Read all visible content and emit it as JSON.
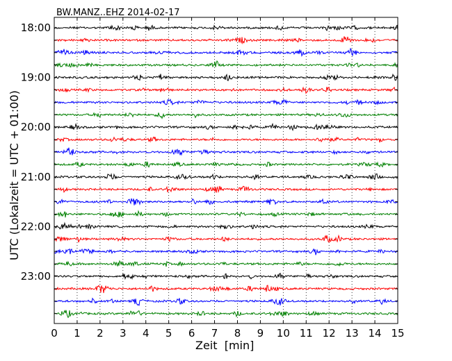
{
  "chart_data": {
    "type": "line",
    "title": "BW.MANZ..EHZ 2014-02-17",
    "xlabel": "Zeit  [min]",
    "ylabel": "UTC (Lokalzeit = UTC + 01:00)",
    "xlim": [
      0,
      15
    ],
    "x_ticks": [
      "0",
      "1",
      "2",
      "3",
      "4",
      "5",
      "6",
      "7",
      "8",
      "9",
      "10",
      "11",
      "12",
      "13",
      "14",
      "15"
    ],
    "y_ticks": [
      "18:00",
      "19:00",
      "20:00",
      "21:00",
      "22:00",
      "23:00"
    ],
    "grid": true,
    "trace_colors": [
      "#000000",
      "#ff0000",
      "#0000ff",
      "#008000"
    ],
    "rows": [
      "18:00",
      "18:15",
      "18:30",
      "18:45",
      "19:00",
      "19:15",
      "19:30",
      "19:45",
      "20:00",
      "20:15",
      "20:30",
      "20:45",
      "21:00",
      "21:15",
      "21:30",
      "21:45",
      "22:00",
      "22:15",
      "22:30",
      "22:45",
      "23:00",
      "23:15",
      "23:30",
      "23:45"
    ]
  }
}
